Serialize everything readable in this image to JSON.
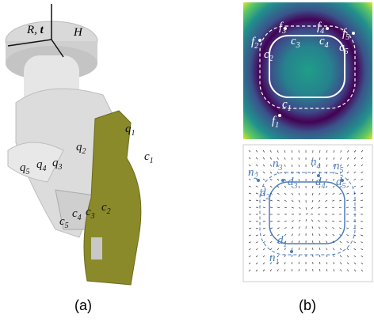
{
  "panel_a": {
    "caption": "(a)",
    "frame": {
      "rotation": "R, ",
      "translation": "t",
      "hand": "H"
    },
    "labels": [
      {
        "base": "q",
        "sub": "1"
      },
      {
        "base": "c",
        "sub": "1"
      },
      {
        "base": "q",
        "sub": "2"
      },
      {
        "base": "q",
        "sub": "3"
      },
      {
        "base": "q",
        "sub": "4"
      },
      {
        "base": "q",
        "sub": "5"
      },
      {
        "base": "c",
        "sub": "2"
      },
      {
        "base": "c",
        "sub": "3"
      },
      {
        "base": "c",
        "sub": "4"
      },
      {
        "base": "c",
        "sub": "5"
      }
    ]
  },
  "panel_b": {
    "caption": "(b)",
    "top_labels": [
      {
        "base": "f",
        "sub": "1"
      },
      {
        "base": "c",
        "sub": "1"
      },
      {
        "base": "f",
        "sub": "2"
      },
      {
        "base": "c",
        "sub": "2"
      },
      {
        "base": "f",
        "sub": "3"
      },
      {
        "base": "c",
        "sub": "3"
      },
      {
        "base": "f",
        "sub": "4"
      },
      {
        "base": "c",
        "sub": "4"
      },
      {
        "base": "f",
        "sub": "5"
      },
      {
        "base": "c",
        "sub": "5"
      }
    ],
    "bottom_labels": [
      {
        "base": "n",
        "sub": "1"
      },
      {
        "base": "d",
        "sub": "1"
      },
      {
        "base": "n",
        "sub": "2"
      },
      {
        "base": "d",
        "sub": "2"
      },
      {
        "base": "n",
        "sub": "3"
      },
      {
        "base": "d",
        "sub": "3"
      },
      {
        "base": "n",
        "sub": "4"
      },
      {
        "base": "d",
        "sub": "4"
      },
      {
        "base": "n",
        "sub": "5"
      },
      {
        "base": "d",
        "sub": "5"
      }
    ]
  }
}
